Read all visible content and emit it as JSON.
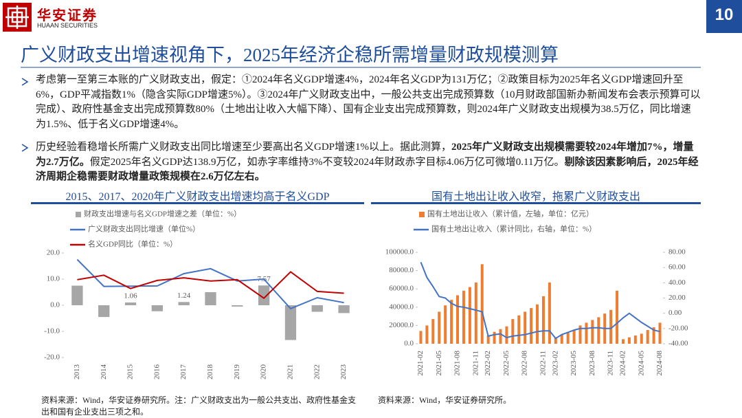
{
  "header": {
    "brand": "华安证券",
    "brand_en": "HUAAN SECURITIES",
    "page": "10"
  },
  "title": "广义财政支出增速视角下，2025年经济企稳所需增量财政规模测算",
  "bullets": [
    {
      "parts": [
        {
          "text": "考虑第一至第三本账的广义财政支出，假定：①2024年名义GDP增速4%，2024年名义GDP为131万亿；②政策目标为2025年名义GDP增速回升至6%，GDP平减指数1%（隐含实际GDP增速5%）。③2024年广义财政支出中，一般公共支出完成预算数（10月财政部国新办新闻发布会表示预算可以完成）、政府性基金支出完成预算数80%（土地出让收入大幅下降）、国有企业支出完成预算数，则2024年广义财政支出规模为38.5万亿，同比增速为1.5%、低于名义GDP增速4%。",
          "bold": false
        }
      ]
    },
    {
      "parts": [
        {
          "text": "历史经验看稳增长所需广义财政支出同比增速至少要高出名义GDP增速1%以上。据此测算，",
          "bold": false
        },
        {
          "text": "2025年广义财政支出规模需要较2024年增加7%，增量为2.7万亿。",
          "bold": true
        },
        {
          "text": "假定2025年名义GDP达138.9万亿，如赤字率维持3%不变较2024年财政赤字目标4.06万亿可微增0.11万亿。",
          "bold": false
        },
        {
          "text": "剔除该因素影响后，2025年经济周期企稳需要财政增量政策规模在2.6万亿左右。",
          "bold": true
        }
      ]
    }
  ],
  "chart_data": [
    {
      "type": "combo",
      "title": "2015、2017、2020年广义财政支出增速均高于名义GDP",
      "categories": [
        "2013",
        "2014",
        "2015",
        "2016",
        "2017",
        "2018",
        "2019",
        "2020",
        "2021",
        "2022",
        "2023"
      ],
      "ylim": [
        -20,
        20
      ],
      "yticks": [
        {
          "value": -20,
          "label": "-20.0"
        },
        {
          "value": -10,
          "label": "-10.0"
        },
        {
          "value": 0,
          "label": "0.0"
        },
        {
          "value": 10,
          "label": "10.0"
        },
        {
          "value": 20,
          "label": "20.0"
        }
      ],
      "series": [
        {
          "name": "财政支出增速与名义GDP增速之差（单位：%）",
          "type": "bar",
          "color": "#a6a6a6",
          "values": [
            7.5,
            -4.5,
            1.06,
            -2.3,
            1.24,
            5.0,
            -0.5,
            7.57,
            -13.3,
            -2.5,
            -3.0
          ],
          "value_labels": [
            null,
            null,
            "1.06",
            null,
            "1.24",
            null,
            null,
            "7.57",
            null,
            null,
            null
          ]
        },
        {
          "name": "广义财政支出同比增速（单位%）",
          "type": "line",
          "color": "#4472c4",
          "values": [
            17.5,
            7.2,
            7.3,
            7.4,
            12.1,
            14.0,
            9.3,
            10.0,
            -1.3,
            2.9,
            1.0
          ]
        },
        {
          "name": "名义GDP同比（单位：%）",
          "type": "line",
          "color": "#c00000",
          "values": [
            9.8,
            11.5,
            6.4,
            9.5,
            10.5,
            9.3,
            9.8,
            2.7,
            12.8,
            5.3,
            4.6
          ]
        }
      ],
      "source": "资料来源：Wind，华安证券研究所。注：广义财政支出为一般公共支出、政府性基金支出和国有企业支出三项之和。"
    },
    {
      "type": "combo",
      "title": "国有土地出让收入收窄，拖累广义财政支出",
      "categories": [
        "2021-02",
        null,
        null,
        "2021-05",
        null,
        null,
        "2021-08",
        null,
        null,
        "2021-11",
        null,
        "2022-02",
        null,
        null,
        "2022-05",
        null,
        null,
        "2022-08",
        null,
        null,
        "2022-11",
        null,
        "2023-02",
        null,
        null,
        "2023-05",
        null,
        null,
        "2023-08",
        null,
        null,
        "2023-11",
        null,
        "2024-02",
        null,
        null,
        "2024-05",
        null,
        null,
        "2024-08"
      ],
      "ylim": [
        0,
        100000
      ],
      "yticks": [
        {
          "value": 0,
          "label": "0.0"
        },
        {
          "value": 20000,
          "label": "20000.0"
        },
        {
          "value": 40000,
          "label": "40000.0"
        },
        {
          "value": 60000,
          "label": "60000.0"
        },
        {
          "value": 80000,
          "label": "80000.0"
        },
        {
          "value": 100000,
          "label": "100000.0"
        }
      ],
      "y2lim": [
        -40,
        80
      ],
      "y2ticks": [
        {
          "value": -40,
          "label": "-40.00"
        },
        {
          "value": -20,
          "label": "-20.00"
        },
        {
          "value": 0,
          "label": "0.00"
        },
        {
          "value": 20,
          "label": "20.00"
        },
        {
          "value": 40,
          "label": "40.00"
        },
        {
          "value": 60,
          "label": "60.00"
        },
        {
          "value": 80,
          "label": "80.00"
        }
      ],
      "series": [
        {
          "name": "国有土地出让收入（累计值，左轴，单位：亿元）",
          "type": "bar",
          "color": "#ed7d31",
          "values": [
            14000,
            20000,
            27000,
            35000,
            42000,
            48000,
            53000,
            58000,
            62000,
            67000,
            87000,
            9000,
            13000,
            16000,
            19000,
            27000,
            31000,
            35000,
            39000,
            43000,
            52000,
            67000,
            7000,
            10000,
            12000,
            15000,
            20000,
            23000,
            26000,
            29000,
            33000,
            37000,
            58000,
            5000,
            7000,
            9000,
            11000,
            15000,
            18000,
            23000
          ]
        },
        {
          "name": "国有土地出让收入（累计同比，右轴，单位：%）",
          "type": "line",
          "axis": "y2",
          "color": "#4472c4",
          "values": [
            67,
            47,
            35,
            22,
            20,
            13,
            9,
            8,
            6,
            4,
            2,
            -30,
            -28,
            -27,
            -32,
            -30,
            -29,
            -28,
            -26,
            -24,
            -23,
            -23,
            -33,
            -28,
            -25,
            -22,
            -20,
            -20,
            -19,
            -19,
            -20,
            -20,
            -13,
            -6,
            0,
            -6,
            -12,
            -17,
            -22,
            -24
          ]
        }
      ],
      "source": "资料来源：Wind，华安证券研究所。"
    }
  ]
}
